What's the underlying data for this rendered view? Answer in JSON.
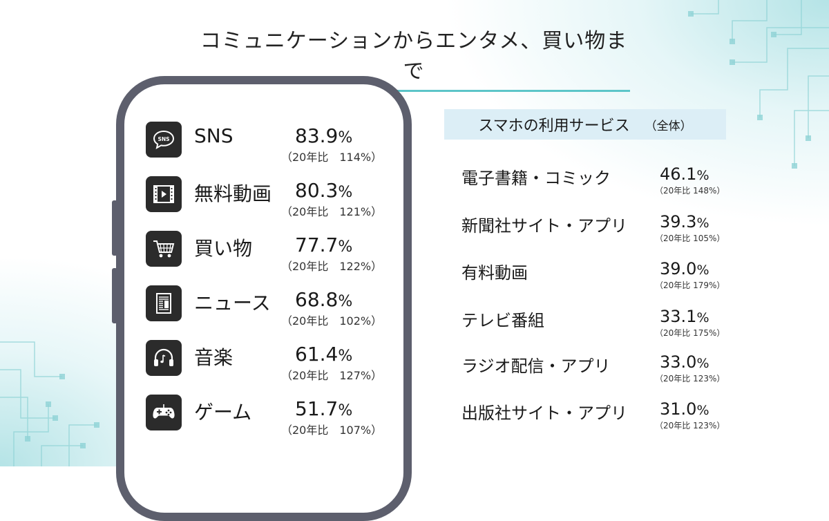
{
  "title": "コミュニケーションからエンタメ、買い物まで",
  "phone_apps": [
    {
      "icon": "sns-bubble-icon",
      "label": "SNS",
      "value": "83.9",
      "unit": "%",
      "sub": "（20年比　114%）"
    },
    {
      "icon": "video-play-icon",
      "label": "無料動画",
      "value": "80.3",
      "unit": "%",
      "sub": "（20年比　121%）"
    },
    {
      "icon": "shopping-cart-icon",
      "label": "買い物",
      "value": "77.7",
      "unit": "%",
      "sub": "（20年比　122%）"
    },
    {
      "icon": "newspaper-icon",
      "label": "ニュース",
      "value": "68.8",
      "unit": "%",
      "sub": "（20年比　102%）"
    },
    {
      "icon": "headphones-icon",
      "label": "音楽",
      "value": "61.4",
      "unit": "%",
      "sub": "（20年比　127%）"
    },
    {
      "icon": "game-controller-icon",
      "label": "ゲーム",
      "value": "51.7",
      "unit": "%",
      "sub": "（20年比　107%）"
    }
  ],
  "services": {
    "heading": "スマホの利用サービス",
    "heading_note": "（全体）",
    "items": [
      {
        "label": "電子書籍・コミック",
        "value": "46.1",
        "unit": "%",
        "sub": "（20年比 148%）"
      },
      {
        "label": "新聞社サイト・アプリ",
        "value": "39.3",
        "unit": "%",
        "sub": "（20年比 105%）"
      },
      {
        "label": "有料動画",
        "value": "39.0",
        "unit": "%",
        "sub": "（20年比 179%）"
      },
      {
        "label": "テレビ番組",
        "value": "33.1",
        "unit": "%",
        "sub": "（20年比 175%）"
      },
      {
        "label": "ラジオ配信・アプリ",
        "value": "33.0",
        "unit": "%",
        "sub": "（20年比 123%）"
      },
      {
        "label": "出版社サイト・アプリ",
        "value": "31.0",
        "unit": "%",
        "sub": "（20年比 123%）"
      }
    ]
  },
  "colors": {
    "accent": "#5cc5c8",
    "phone_frame": "#5d5f6d",
    "heading_bg": "#dceef6",
    "icon_bg": "#2b2b2b"
  }
}
